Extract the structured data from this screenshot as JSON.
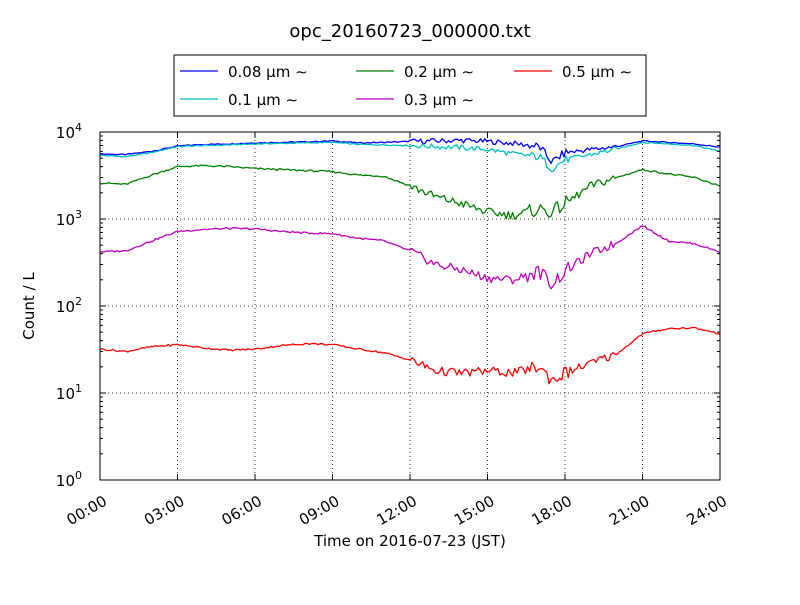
{
  "chart_data": {
    "type": "line",
    "title": "opc_20160723_000000.txt",
    "xlabel": "Time on 2016-07-23 (JST)",
    "ylabel": "Count / L",
    "y_scale": "log",
    "ylim": [
      1,
      10000
    ],
    "xlim": [
      "00:00",
      "24:00"
    ],
    "grid": "on (dotted)",
    "legend_position": "top (above plot, 3 columns)",
    "x_ticks": [
      "00:00",
      "03:00",
      "06:00",
      "09:00",
      "12:00",
      "15:00",
      "18:00",
      "21:00",
      "24:00"
    ],
    "y_ticks": [
      {
        "base": "10",
        "exp": "0",
        "value": 1
      },
      {
        "base": "10",
        "exp": "1",
        "value": 10
      },
      {
        "base": "10",
        "exp": "2",
        "value": 100
      },
      {
        "base": "10",
        "exp": "3",
        "value": 1000
      },
      {
        "base": "10",
        "exp": "4",
        "value": 10000
      }
    ],
    "x": [
      "00:00",
      "01:00",
      "02:00",
      "03:00",
      "04:00",
      "05:00",
      "06:00",
      "07:00",
      "08:00",
      "09:00",
      "10:00",
      "11:00",
      "12:00",
      "13:00",
      "14:00",
      "15:00",
      "16:00",
      "17:00",
      "17:30",
      "18:00",
      "19:00",
      "20:00",
      "21:00",
      "22:00",
      "23:00",
      "24:00"
    ],
    "series": [
      {
        "name": "0.08 μm ∼",
        "color": "#0000ff",
        "values": [
          5600,
          5500,
          6000,
          6900,
          7200,
          7300,
          7500,
          7600,
          7700,
          7900,
          7500,
          7600,
          7800,
          7900,
          8000,
          7800,
          7400,
          6800,
          4500,
          5800,
          6300,
          6800,
          7900,
          7600,
          7300,
          6700
        ]
      },
      {
        "name": "0.1 μm ∼",
        "color": "#00bfbf",
        "values": [
          5400,
          5200,
          5800,
          6800,
          7000,
          7100,
          7300,
          7400,
          7500,
          7600,
          7200,
          7100,
          7000,
          6800,
          6600,
          6300,
          5600,
          5200,
          3800,
          4800,
          5500,
          6400,
          7600,
          7300,
          7000,
          6000
        ]
      },
      {
        "name": "0.2 μm ∼",
        "color": "#008000",
        "values": [
          2600,
          2500,
          3200,
          4000,
          4100,
          4000,
          3800,
          3700,
          3600,
          3500,
          3200,
          3100,
          2400,
          1800,
          1500,
          1200,
          1100,
          1300,
          1200,
          1500,
          2400,
          3000,
          3700,
          3300,
          3000,
          2400
        ]
      },
      {
        "name": "0.3 μm ∼",
        "color": "#bf00bf",
        "values": [
          420,
          430,
          560,
          720,
          760,
          780,
          770,
          720,
          690,
          680,
          600,
          560,
          430,
          300,
          260,
          210,
          200,
          250,
          180,
          250,
          400,
          530,
          840,
          560,
          520,
          420
        ]
      },
      {
        "name": "0.5 μm ∼",
        "color": "#ff0000",
        "values": [
          32,
          30,
          34,
          36,
          33,
          31,
          32,
          35,
          37,
          36,
          32,
          29,
          24,
          18,
          17,
          18,
          17,
          20,
          14,
          17,
          22,
          28,
          48,
          55,
          56,
          48
        ]
      }
    ]
  }
}
